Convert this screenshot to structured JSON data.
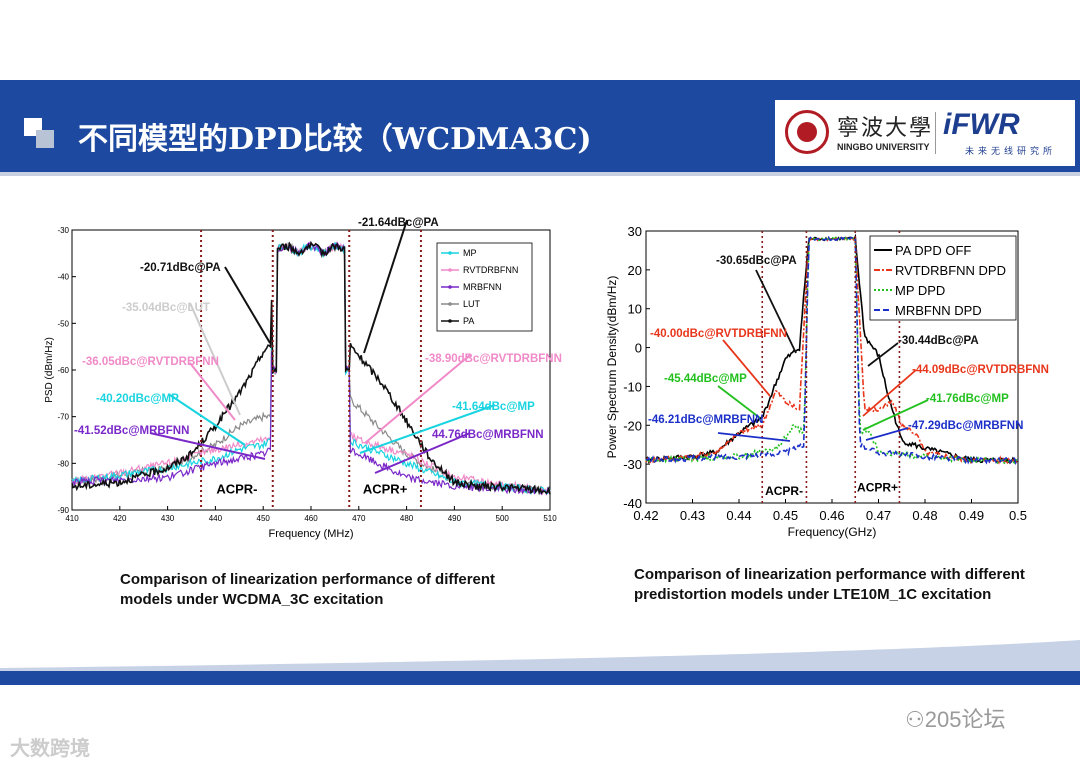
{
  "slide": {
    "title": "不同模型的DPD比较（WCDMA3C)"
  },
  "logo": {
    "university_cn": "寧波大學",
    "university_en": "NINGBO UNIVERSITY",
    "brand": "iFWR",
    "brand_sub": "未来无线研究所"
  },
  "captions": {
    "left": "Comparison of linearization performance of different models under WCDMA_3C excitation",
    "right": "Comparison of linearization performance with different predistortion  models under LTE10M_1C excitation"
  },
  "watermarks": {
    "left": "大数跨境",
    "right": "205论坛"
  },
  "colors": {
    "banner": "#1d4aa0",
    "pa": "#111111",
    "mp": "#19d4e0",
    "rvtdrbfnn": "#f08ac8",
    "mrbfnn": "#7a28c8",
    "lut": "#8a8a8a",
    "acpr_line": "#8b1a1a"
  },
  "chart_data": [
    {
      "type": "line",
      "xlabel": "Frequency (MHz)",
      "ylabel": "PSD  (dBm/Hz)",
      "xlim": [
        410,
        510
      ],
      "ylim": [
        -90,
        -30
      ],
      "xticks": [
        "410",
        "420",
        "430",
        "440",
        "450",
        "460",
        "470",
        "480",
        "490",
        "500",
        "510"
      ],
      "yticks": [
        "-30",
        "-40",
        "-50",
        "-60",
        "-70",
        "-80",
        "-90"
      ],
      "legend": [
        "MP",
        "RVTDRBFNN",
        "MRBFNN",
        "LUT",
        "PA"
      ],
      "acpr_lines_mhz": [
        437,
        452,
        468,
        483
      ],
      "region_labels": [
        "ACPR-",
        "ACPR+"
      ],
      "series": [
        {
          "name": "PA",
          "x": [
            410,
            420,
            430,
            435,
            440,
            445,
            448,
            450,
            451.5,
            452,
            470,
            475,
            480,
            485,
            490,
            495,
            500,
            510
          ],
          "y": [
            -85,
            -84,
            -81,
            -78,
            -72,
            -65,
            -60,
            -56,
            -55,
            -35,
            -57,
            -63,
            -71,
            -79,
            -84,
            -85,
            -85,
            -86
          ]
        },
        {
          "name": "LUT",
          "x": [
            410,
            430,
            440,
            445,
            450,
            451.5,
            452,
            468,
            470,
            475,
            480,
            490,
            510
          ],
          "y": [
            -84,
            -81,
            -76,
            -72,
            -70,
            -70,
            -35,
            -66,
            -68,
            -73,
            -78,
            -84,
            -86
          ]
        },
        {
          "name": "RVTDRBFNN",
          "x": [
            410,
            430,
            440,
            445,
            450,
            451.5,
            452,
            468,
            470,
            480,
            490,
            510
          ],
          "y": [
            -84,
            -80,
            -77,
            -76,
            -75,
            -75,
            -35,
            -74,
            -75,
            -78,
            -83,
            -86
          ]
        },
        {
          "name": "MP",
          "x": [
            410,
            430,
            440,
            445,
            450,
            451.5,
            452,
            468,
            470,
            480,
            490,
            510
          ],
          "y": [
            -84,
            -81,
            -79,
            -77,
            -76,
            -75,
            -35,
            -75,
            -76,
            -80,
            -84,
            -86
          ]
        },
        {
          "name": "MRBFNN",
          "x": [
            410,
            430,
            440,
            445,
            450,
            451.5,
            452,
            468,
            470,
            480,
            490,
            510
          ],
          "y": [
            -84,
            -83,
            -80,
            -79,
            -78,
            -77,
            -35,
            -77,
            -78,
            -83,
            -85,
            -86
          ]
        }
      ],
      "annotations": [
        {
          "text": "-20.71dBc@PA",
          "color": "#111111"
        },
        {
          "text": "-21.64dBc@PA",
          "color": "#111111"
        },
        {
          "text": "-35.04dBc@LUT",
          "color": "#cccccc"
        },
        {
          "text": "-36.05dBc@RVTDRBFNN",
          "color": "#f08ac8"
        },
        {
          "text": "-38.90dBc@RVTDRBFNN",
          "color": "#f08ac8"
        },
        {
          "text": "-40.20dBc@MP",
          "color": "#19d4e0"
        },
        {
          "text": "-41.64dBc@MP",
          "color": "#19d4e0"
        },
        {
          "text": "-41.52dBc@MRBFNN",
          "color": "#7a28c8"
        },
        {
          "text": "44.76dBc@MRBFNN",
          "color": "#7a28c8"
        }
      ]
    },
    {
      "type": "line",
      "xlabel": "Frequency(GHz)",
      "ylabel": "Power Spectrum Density(dBm/Hz)",
      "xlim": [
        0.42,
        0.5
      ],
      "ylim": [
        -40,
        30
      ],
      "xticks": [
        "0.42",
        "0.43",
        "0.44",
        "0.45",
        "0.46",
        "0.47",
        "0.48",
        "0.49",
        "0.5"
      ],
      "yticks": [
        "30",
        "20",
        "10",
        "0",
        "-10",
        "-20",
        "-30",
        "-40"
      ],
      "legend": [
        "PA DPD OFF",
        "RVTDRBFNN DPD",
        "MP DPD",
        "MRBFNN DPD"
      ],
      "acpr_lines_ghz": [
        0.445,
        0.4545,
        0.465,
        0.4745
      ],
      "region_labels": [
        "ACPR-",
        "ACPR+"
      ],
      "series": [
        {
          "name": "PA DPD OFF",
          "x": [
            0.42,
            0.43,
            0.435,
            0.44,
            0.445,
            0.45,
            0.453,
            0.455,
            0.465,
            0.467,
            0.47,
            0.472,
            0.475,
            0.48,
            0.49,
            0.5
          ],
          "y": [
            -29,
            -28,
            -27,
            -22,
            -18,
            -3,
            0,
            28,
            28,
            3,
            -2,
            -12,
            -24,
            -26,
            -29,
            -29
          ]
        },
        {
          "name": "RVTDRBFNN DPD",
          "x": [
            0.42,
            0.43,
            0.435,
            0.44,
            0.445,
            0.448,
            0.45,
            0.453,
            0.455,
            0.465,
            0.467,
            0.47,
            0.473,
            0.475,
            0.478,
            0.48,
            0.49,
            0.5
          ],
          "y": [
            -29,
            -28,
            -27,
            -22,
            -20,
            -11,
            -14,
            -16,
            28,
            28,
            -16,
            -16,
            -14,
            -20,
            -22,
            -27,
            -29,
            -29
          ]
        },
        {
          "name": "MP DPD",
          "x": [
            0.42,
            0.44,
            0.448,
            0.452,
            0.454,
            0.455,
            0.465,
            0.466,
            0.468,
            0.47,
            0.49,
            0.5
          ],
          "y": [
            -29,
            -28,
            -26,
            -20,
            -22,
            28,
            28,
            -22,
            -21,
            -27,
            -29,
            -29
          ]
        },
        {
          "name": "MRBFNN DPD",
          "x": [
            0.42,
            0.44,
            0.45,
            0.454,
            0.455,
            0.465,
            0.466,
            0.47,
            0.49,
            0.5
          ],
          "y": [
            -29,
            -28,
            -27,
            -25,
            28,
            28,
            -25,
            -27,
            -29,
            -29
          ]
        }
      ],
      "annotations": [
        {
          "text": "-30.65dBc@PA",
          "color": "#111111"
        },
        {
          "text": "-30.44dBc@PA",
          "color": "#111111"
        },
        {
          "text": "-40.00dBc@RVTDRBFNN",
          "color": "#e8361c"
        },
        {
          "text": "-44.09dBc@RVTDRBFNN",
          "color": "#e8361c"
        },
        {
          "text": "-45.44dBc@MP",
          "color": "#22c01e"
        },
        {
          "text": "-41.76dBc@MP",
          "color": "#22c01e"
        },
        {
          "text": "-46.21dBc@MRBFNN",
          "color": "#1b2fc8"
        },
        {
          "text": "-47.29dBc@MRBFNN",
          "color": "#1b2fc8"
        }
      ]
    }
  ]
}
